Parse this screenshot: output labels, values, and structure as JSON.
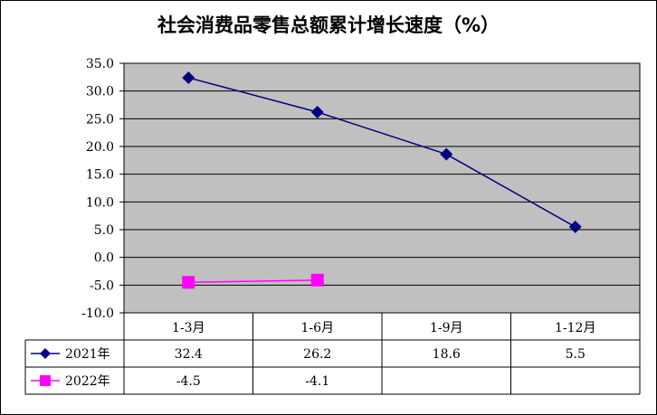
{
  "chart_data": {
    "type": "line",
    "title": "社会消费品零售总额累计增长速度（%）",
    "categories": [
      "1-3月",
      "1-6月",
      "1-9月",
      "1-12月"
    ],
    "ylim": [
      -10.0,
      35.0
    ],
    "yticks": [
      "35.0",
      "30.0",
      "25.0",
      "20.0",
      "15.0",
      "10.0",
      "5.0",
      "0.0",
      "-5.0",
      "-10.0"
    ],
    "grid": true,
    "legend": "data-table",
    "series": [
      {
        "name": "2021年",
        "values": [
          32.4,
          26.2,
          18.6,
          5.5
        ],
        "labels": [
          "32.4",
          "26.2",
          "18.6",
          "5.5"
        ],
        "color": "#000080",
        "marker": "diamond"
      },
      {
        "name": "2022年",
        "values": [
          -4.5,
          -4.1,
          null,
          null
        ],
        "labels": [
          "-4.5",
          "-4.1",
          "",
          ""
        ],
        "color": "#ff00ff",
        "marker": "square"
      }
    ],
    "plot_background": "#c0c0c0"
  }
}
